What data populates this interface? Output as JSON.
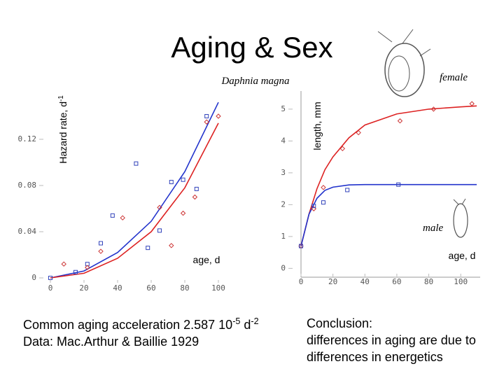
{
  "title": "Aging & Sex",
  "subtitle": "Daphnia magna",
  "chart_data": [
    {
      "type": "scatter",
      "ylabel": [
        {
          "text": "Hazard rate, d"
        },
        {
          "sup": "-1"
        }
      ],
      "xlabel": "age, d",
      "xlim": [
        0,
        100
      ],
      "xticks": [
        0,
        20,
        40,
        60,
        80,
        100
      ],
      "ylim": [
        0,
        0.16
      ],
      "yticks": [
        0,
        0.04,
        0.08,
        0.12
      ],
      "series": [
        {
          "color": "#3344bb",
          "marker": "square",
          "x": [
            0,
            15,
            22,
            30,
            37,
            51,
            58,
            65,
            72,
            79,
            87,
            93
          ],
          "values": [
            0,
            0.005,
            0.012,
            0.03,
            0.054,
            0.099,
            0.026,
            0.041,
            0.083,
            0.085,
            0.077,
            0.14
          ]
        },
        {
          "color": "#cc3333",
          "marker": "diamond",
          "x": [
            8,
            22,
            30,
            43,
            65,
            72,
            79,
            86,
            93,
            100
          ],
          "values": [
            0.012,
            0.009,
            0.023,
            0.052,
            0.061,
            0.028,
            0.056,
            0.07,
            0.135,
            0.14
          ]
        }
      ],
      "fits": [
        {
          "color": "#2233cc",
          "x": [
            0,
            20,
            40,
            60,
            80,
            100
          ],
          "values": [
            0,
            0.006,
            0.022,
            0.049,
            0.092,
            0.152
          ]
        },
        {
          "color": "#dd2222",
          "x": [
            0,
            20,
            40,
            60,
            80,
            100
          ],
          "values": [
            0,
            0.004,
            0.017,
            0.04,
            0.078,
            0.134
          ]
        }
      ]
    },
    {
      "type": "scatter",
      "ylabel": [
        {
          "text": "length, mm"
        }
      ],
      "xlabel": "age, d",
      "xlim": [
        0,
        110
      ],
      "xticks": [
        0,
        20,
        40,
        60,
        80,
        100
      ],
      "ylim": [
        -0.3,
        5.6
      ],
      "yticks": [
        0,
        1,
        2,
        3,
        4,
        5
      ],
      "series": [
        {
          "name": "female",
          "color": "#cc3333",
          "marker": "diamond",
          "x": [
            0,
            8,
            14,
            26,
            36,
            62,
            83,
            107
          ],
          "values": [
            0.7,
            1.87,
            2.54,
            3.76,
            4.26,
            4.63,
            5.0,
            5.17
          ]
        },
        {
          "name": "male",
          "color": "#3344bb",
          "marker": "square",
          "x": [
            0,
            8,
            14,
            29,
            61
          ],
          "values": [
            0.7,
            1.96,
            2.07,
            2.46,
            2.63
          ]
        }
      ],
      "fits": [
        {
          "color": "#dd2222",
          "x": [
            0,
            5,
            10,
            15,
            20,
            30,
            40,
            60,
            80,
            100,
            110
          ],
          "values": [
            0.7,
            1.7,
            2.5,
            3.1,
            3.5,
            4.1,
            4.5,
            4.85,
            5.0,
            5.07,
            5.1
          ]
        },
        {
          "color": "#2233cc",
          "x": [
            0,
            5,
            10,
            15,
            20,
            30,
            40,
            60,
            80,
            100,
            110
          ],
          "values": [
            0.7,
            1.7,
            2.2,
            2.45,
            2.55,
            2.62,
            2.63,
            2.63,
            2.63,
            2.63,
            2.63
          ]
        }
      ]
    }
  ],
  "notes": {
    "left": [
      [
        {
          "text": "Common aging acceleration 2.587 10"
        },
        {
          "sup": "-5"
        },
        {
          "text": " d"
        },
        {
          "sup": "-2"
        }
      ],
      [
        {
          "text": "Data: Mac.Arthur & Baillie 1929"
        }
      ]
    ],
    "right": [
      [
        {
          "text": "Conclusion:"
        }
      ],
      [
        {
          "text": "differences in aging are due to"
        }
      ],
      [
        {
          "text": "differences in energetics"
        }
      ]
    ]
  }
}
